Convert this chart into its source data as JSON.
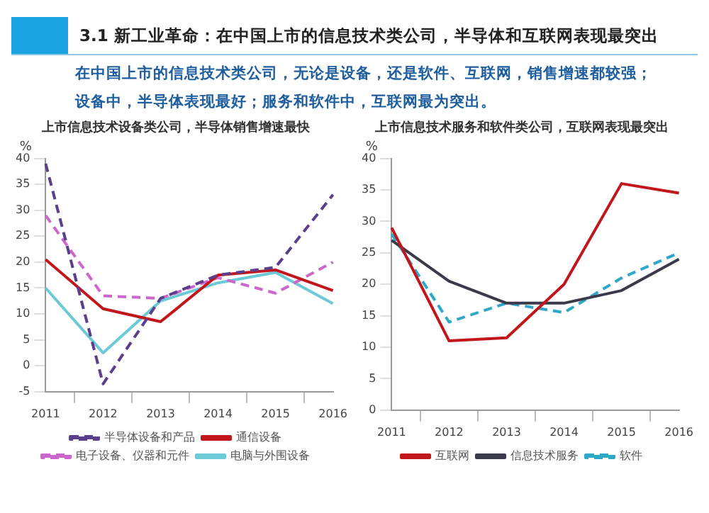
{
  "chart_data": [
    {
      "type": "other",
      "title": "3.1 新工业革命：在中国上市的信息技术类公司，半导体和互联网表现最突出",
      "annotations": [
        "在中国上市的信息技术类公司，无论是设备，还是软件、互联网，销售增速都较强；",
        "设备中，半导体表现最好；服务和软件中，互联网最为突出。"
      ]
    },
    {
      "type": "line",
      "title": "上市信息技术设备类公司，半导体销售增速最快",
      "ylabel": "%",
      "categories": [
        "2011",
        "2012",
        "2013",
        "2014",
        "2015",
        "2016"
      ],
      "ylim": [
        -5,
        40
      ],
      "yticks": [
        -5,
        0,
        5,
        10,
        15,
        20,
        25,
        30,
        35,
        40
      ],
      "legend": "bottom",
      "marker": "none",
      "series": [
        {
          "name": "半导体设备和产品",
          "color": "#5b3f8c",
          "line_style": "dashed",
          "values": [
            39,
            -3.5,
            13,
            17.5,
            19,
            33
          ]
        },
        {
          "name": "通信设备",
          "color": "#c0161c",
          "line_style": "solid",
          "values": [
            20.5,
            11,
            8.5,
            17.5,
            18.5,
            14.5
          ]
        },
        {
          "name": "电子设备、仪器和元件",
          "color": "#cc66cc",
          "line_style": "dashed",
          "values": [
            29,
            13.5,
            13,
            17,
            14,
            20
          ]
        },
        {
          "name": "电脑与外围设备",
          "color": "#6cc9d6",
          "line_style": "solid",
          "values": [
            15,
            2.5,
            12.5,
            16,
            18,
            12
          ]
        }
      ]
    },
    {
      "type": "line",
      "title": "上市信息技术服务和软件类公司，互联网表现最突出",
      "ylabel": "%",
      "categories": [
        "2011",
        "2012",
        "2013",
        "2014",
        "2015",
        "2016"
      ],
      "ylim": [
        0,
        40
      ],
      "yticks": [
        0,
        5,
        10,
        15,
        20,
        25,
        30,
        35,
        40
      ],
      "legend": "bottom",
      "marker": "none",
      "series": [
        {
          "name": "互联网",
          "color": "#c0161c",
          "line_style": "solid",
          "values": [
            29,
            11,
            11.5,
            20,
            36,
            34.5
          ]
        },
        {
          "name": "信息技术服务",
          "color": "#3a3a4a",
          "line_style": "solid",
          "values": [
            27,
            20.5,
            17,
            17,
            19,
            24
          ]
        },
        {
          "name": "软件",
          "color": "#2fa8c8",
          "line_style": "dashed",
          "values": [
            28,
            14,
            17,
            15.5,
            21,
            25
          ]
        }
      ]
    }
  ]
}
